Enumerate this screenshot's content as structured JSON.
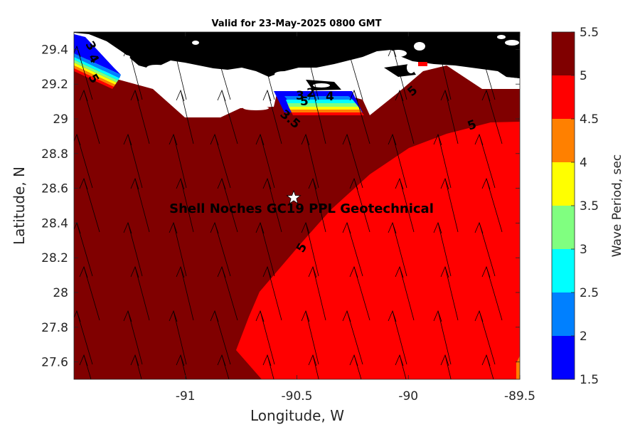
{
  "title": "Valid for 23-May-2025 0800 GMT",
  "xlabel": "Longitude, W",
  "ylabel": "Latitude, N",
  "x_ticks": [
    "-91",
    "-90.5",
    "-90",
    "-89.5"
  ],
  "y_ticks": [
    "29.4",
    "29.2",
    "29",
    "28.8",
    "28.6",
    "28.4",
    "28.2",
    "28",
    "27.8",
    "27.6"
  ],
  "colorbar": {
    "label": "Wave Period, sec",
    "ticks": [
      "5.5",
      "5",
      "4.5",
      "4",
      "3.5",
      "3",
      "2.5",
      "2",
      "1.5"
    ],
    "colors": [
      "#800000",
      "#ff0000",
      "#ff8000",
      "#ffff00",
      "#80ff80",
      "#00ffff",
      "#0080ff",
      "#0000ff"
    ]
  },
  "annotation": "Shell Noches   GC19 PPL   Geotechnical",
  "contour_labels": [
    "5",
    "5",
    "5",
    "5",
    "3",
    "4",
    "5",
    "3",
    "2",
    "4",
    "3.5"
  ],
  "map": {
    "extent_lon": [
      -91.5,
      -89.5
    ],
    "extent_lat": [
      27.5,
      29.5
    ],
    "site_marker": {
      "lon": -90.5,
      "lat": 28.55,
      "symbol": "star"
    },
    "land_color": "#000000",
    "shore_color": "#ffffff",
    "vector_direction": "north-northwest"
  }
}
